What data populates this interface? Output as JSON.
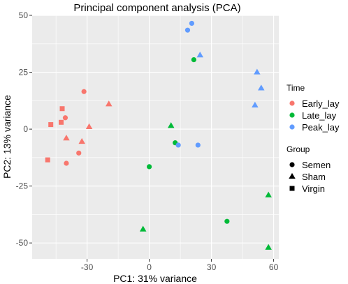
{
  "chart_data": {
    "type": "scatter",
    "title": "Principal component analysis (PCA)",
    "xlabel": "PC1: 31% variance",
    "ylabel": "PC2: 13% variance",
    "xlim": [
      -56.5,
      62.5
    ],
    "ylim": [
      -57,
      50
    ],
    "xticks": [
      -30,
      0,
      30,
      60
    ],
    "xtick_labels": [
      "-30",
      "0",
      "30",
      "60"
    ],
    "yticks": [
      -50,
      -25,
      0,
      25,
      50
    ],
    "ytick_labels": [
      "-50",
      "-25",
      "0",
      "25",
      "50"
    ],
    "grid": true,
    "legend_position": "right",
    "legend_color": {
      "title": "Time",
      "entries": [
        {
          "label": "Early_lay",
          "color": "#F8766D"
        },
        {
          "label": "Late_lay",
          "color": "#00BA38"
        },
        {
          "label": "Peak_lay",
          "color": "#619CFF"
        }
      ]
    },
    "legend_shape": {
      "title": "Group",
      "entries": [
        {
          "label": "Semen",
          "shape": "circle"
        },
        {
          "label": "Sham",
          "shape": "triangle"
        },
        {
          "label": "Virgin",
          "shape": "square"
        }
      ]
    },
    "points": [
      {
        "x": -31.5,
        "y": 16.5,
        "time": "Early_lay",
        "group": "Semen"
      },
      {
        "x": -40.5,
        "y": 5,
        "time": "Early_lay",
        "group": "Semen"
      },
      {
        "x": -34,
        "y": -10.5,
        "time": "Early_lay",
        "group": "Semen"
      },
      {
        "x": -40,
        "y": -15,
        "time": "Early_lay",
        "group": "Semen"
      },
      {
        "x": -19.5,
        "y": 11,
        "time": "Early_lay",
        "group": "Sham"
      },
      {
        "x": -29,
        "y": 1,
        "time": "Early_lay",
        "group": "Sham"
      },
      {
        "x": -40,
        "y": -4,
        "time": "Early_lay",
        "group": "Sham"
      },
      {
        "x": -32.5,
        "y": -5.5,
        "time": "Early_lay",
        "group": "Sham"
      },
      {
        "x": -42,
        "y": 9,
        "time": "Early_lay",
        "group": "Virgin"
      },
      {
        "x": -42.5,
        "y": 3,
        "time": "Early_lay",
        "group": "Virgin"
      },
      {
        "x": -47.5,
        "y": 2,
        "time": "Early_lay",
        "group": "Virgin"
      },
      {
        "x": -49,
        "y": -13.5,
        "time": "Early_lay",
        "group": "Virgin"
      },
      {
        "x": 21.5,
        "y": 30.5,
        "time": "Late_lay",
        "group": "Semen"
      },
      {
        "x": 12.5,
        "y": -6,
        "time": "Late_lay",
        "group": "Semen"
      },
      {
        "x": 0,
        "y": -16.5,
        "time": "Late_lay",
        "group": "Semen"
      },
      {
        "x": 37.5,
        "y": -40.5,
        "time": "Late_lay",
        "group": "Semen"
      },
      {
        "x": 10.5,
        "y": 1.5,
        "time": "Late_lay",
        "group": "Sham"
      },
      {
        "x": -3,
        "y": -44,
        "time": "Late_lay",
        "group": "Sham"
      },
      {
        "x": 57.5,
        "y": -29,
        "time": "Late_lay",
        "group": "Sham"
      },
      {
        "x": 57.5,
        "y": -52,
        "time": "Late_lay",
        "group": "Sham"
      },
      {
        "x": 20.5,
        "y": 46.5,
        "time": "Peak_lay",
        "group": "Semen"
      },
      {
        "x": 18.5,
        "y": 43.5,
        "time": "Peak_lay",
        "group": "Semen"
      },
      {
        "x": 14,
        "y": -7,
        "time": "Peak_lay",
        "group": "Semen"
      },
      {
        "x": 23.5,
        "y": -7,
        "time": "Peak_lay",
        "group": "Semen"
      },
      {
        "x": 24.5,
        "y": 32.5,
        "time": "Peak_lay",
        "group": "Sham"
      },
      {
        "x": 52,
        "y": 25,
        "time": "Peak_lay",
        "group": "Sham"
      },
      {
        "x": 54,
        "y": 18,
        "time": "Peak_lay",
        "group": "Sham"
      },
      {
        "x": 51,
        "y": 10.5,
        "time": "Peak_lay",
        "group": "Sham"
      }
    ]
  }
}
